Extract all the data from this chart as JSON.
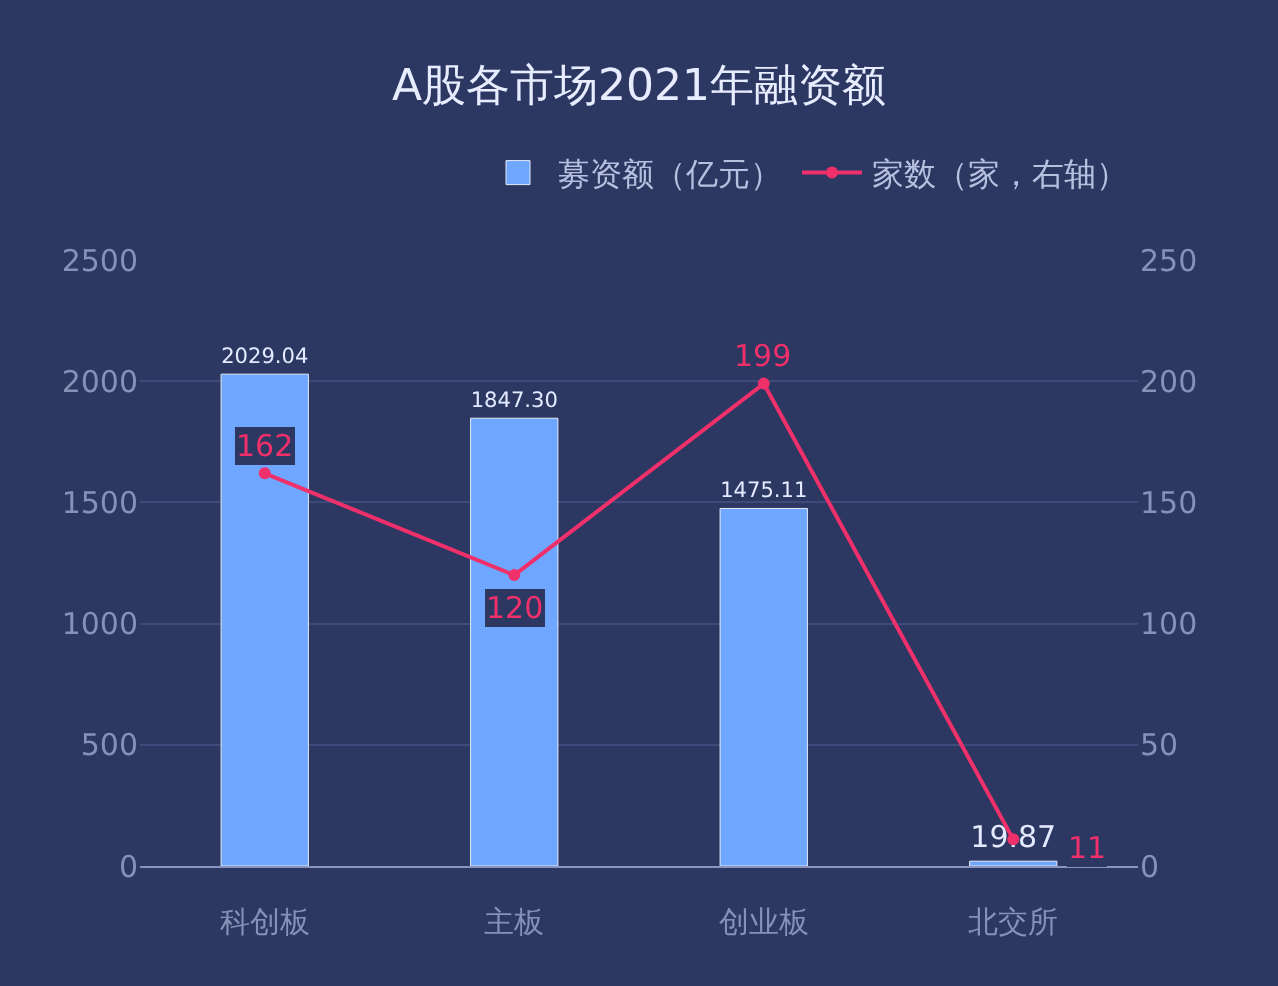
{
  "chart_data": {
    "type": "bar",
    "title": "A股各市场2021年融资额",
    "categories": [
      "科创板",
      "主板",
      "创业板",
      "北交所"
    ],
    "series": [
      {
        "name": "募资额（亿元）",
        "color": "#6fa6ff",
        "values": [
          2029.04,
          1847.3,
          1475.11,
          19.87
        ],
        "value_labels": [
          "2029.04",
          "1847.30",
          "1475.11",
          "19.87"
        ]
      },
      {
        "name": "家数（家，右轴）",
        "type": "line",
        "axis": "y2",
        "color": "#f0306a",
        "values": [
          162,
          120,
          199,
          11
        ],
        "marker": "circle"
      }
    ],
    "data_labels": true,
    "ylim": [
      0,
      2500
    ],
    "yticks": [
      0,
      500,
      1000,
      1500,
      2000,
      2500
    ],
    "y2lim": [
      0,
      250
    ],
    "y2ticks": [
      0,
      50,
      100,
      150,
      200,
      250
    ],
    "grid": "y",
    "legend": "top right"
  }
}
